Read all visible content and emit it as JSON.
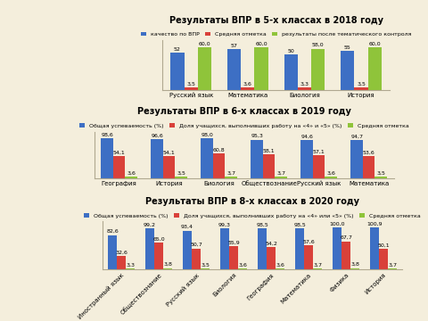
{
  "chart_data": [
    {
      "type": "bar",
      "title": "Результаты ВПР в 5-х классах в 2018 году",
      "categories": [
        "Русский язык",
        "Математика",
        "Биология",
        "История"
      ],
      "series": [
        {
          "name": "качество по ВПР",
          "color": "#3d6fc4",
          "values": [
            52,
            57,
            50,
            55
          ],
          "value_labels": [
            "52",
            "57",
            "50",
            "55"
          ]
        },
        {
          "name": "Средняя отметка",
          "color": "#d9413a",
          "values": [
            3.5,
            3.6,
            3.3,
            3.5
          ],
          "value_labels": [
            "3,5",
            "3,6",
            "3,3",
            "3,5"
          ]
        },
        {
          "name": "результаты после тематического контроля",
          "color": "#8fc43a",
          "values": [
            60.0,
            60.0,
            58.0,
            60.0
          ],
          "value_labels": [
            "60,0",
            "60,0",
            "58,0",
            "60,0"
          ]
        }
      ],
      "ylim": [
        0,
        70
      ],
      "data_labels": true,
      "tick_labels": "x",
      "legend": "top",
      "grid": false
    },
    {
      "type": "bar",
      "title": "Результаты ВПР в 6-х классах в 2019 году",
      "categories": [
        "География",
        "История",
        "Биология",
        "Обществознание",
        "Русский язык",
        "Математика"
      ],
      "series": [
        {
          "name": "Общая успеваемость (%)",
          "color": "#3d6fc4",
          "values": [
            98.6,
            96.6,
            98.0,
            95.3,
            94.6,
            94.7
          ],
          "value_labels": [
            "98,6",
            "96,6",
            "98,0",
            "95,3",
            "94,6",
            "94,7"
          ]
        },
        {
          "name": "Доля учащихся, выполнивших работу на «4» и «5» (%)",
          "color": "#d9413a",
          "values": [
            54.1,
            54.1,
            60.8,
            58.1,
            57.1,
            53.6
          ],
          "value_labels": [
            "54,1",
            "54,1",
            "60,8",
            "58,1",
            "57,1",
            "53,6"
          ]
        },
        {
          "name": "Средняя отметка",
          "color": "#8fc43a",
          "values": [
            3.6,
            3.5,
            3.7,
            3.7,
            3.6,
            3.5
          ],
          "value_labels": [
            "3,6",
            "3,5",
            "3,7",
            "3,7",
            "3,6",
            "3,5"
          ]
        }
      ],
      "ylim": [
        0,
        115
      ],
      "data_labels": true,
      "tick_labels": "x",
      "legend": "top",
      "grid": false
    },
    {
      "type": "bar",
      "title": "Результаты ВПР в 8-х классах в 2020 году",
      "categories": [
        "Иностранный язык",
        "Обществознание",
        "Русский язык",
        "Биология",
        "География",
        "Математика",
        "Физика",
        "История"
      ],
      "series": [
        {
          "name": "Общая успеваемость (%)",
          "color": "#3d6fc4",
          "values": [
            82.6,
            99.2,
            93.4,
            99.3,
            98.5,
            98.5,
            100.0,
            100.9
          ],
          "value_labels": [
            "82,6",
            "99,2",
            "93,4",
            "99,3",
            "98,5",
            "98,5",
            "100,0",
            "100,9"
          ]
        },
        {
          "name": "Доля учащихся, выполнивших работу на «4» или «5» (%)",
          "color": "#d9413a",
          "values": [
            32.6,
            65.0,
            50.7,
            55.9,
            54.2,
            57.6,
            67.7,
            50.1
          ],
          "value_labels": [
            "32,6",
            "65,0",
            "50,7",
            "55,9",
            "54,2",
            "57,6",
            "67,7",
            "50,1"
          ]
        },
        {
          "name": "Средняя отметка",
          "color": "#8fc43a",
          "values": [
            3.3,
            3.8,
            3.5,
            3.6,
            3.6,
            3.7,
            3.8,
            3.7
          ],
          "value_labels": [
            "3,3",
            "3,8",
            "3,5",
            "3,6",
            "3,6",
            "3,7",
            "3,8",
            "3,7"
          ]
        }
      ],
      "ylim": [
        0,
        115
      ],
      "data_labels": true,
      "tick_labels": "x",
      "legend": "top",
      "grid": false
    }
  ]
}
